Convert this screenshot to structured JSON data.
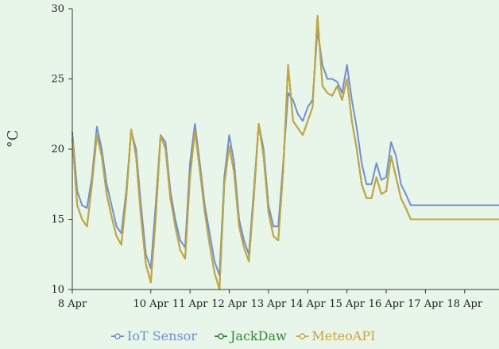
{
  "chart_data": {
    "type": "line",
    "ylabel": "°C",
    "ylim": [
      10,
      30
    ],
    "xlim": [
      "2024-04-08T00:00",
      "2024-04-18T21:00"
    ],
    "yticks": [
      10,
      15,
      20,
      25,
      30
    ],
    "xticks": [
      {
        "x": "2024-04-08T00:00",
        "label": "8 Apr"
      },
      {
        "x": "2024-04-10T00:00",
        "label": "10 Apr"
      },
      {
        "x": "2024-04-11T00:00",
        "label": "11 Apr"
      },
      {
        "x": "2024-04-12T00:00",
        "label": "12 Apr"
      },
      {
        "x": "2024-04-13T00:00",
        "label": "13 Apr"
      },
      {
        "x": "2024-04-14T00:00",
        "label": "14 Apr"
      },
      {
        "x": "2024-04-15T00:00",
        "label": "15 Apr"
      },
      {
        "x": "2024-04-16T00:00",
        "label": "16 Apr"
      },
      {
        "x": "2024-04-17T00:00",
        "label": "17 Apr"
      },
      {
        "x": "2024-04-18T00:00",
        "label": "18 Apr"
      }
    ],
    "grid": false,
    "legend_position": "bottom-center",
    "series": [
      {
        "name": "IoT Sensor",
        "color": "#6d8fd6",
        "x": [
          "2024-04-08T00:00",
          "2024-04-08T03:00",
          "2024-04-08T06:00",
          "2024-04-08T09:00",
          "2024-04-08T12:00",
          "2024-04-08T15:00",
          "2024-04-08T18:00",
          "2024-04-08T21:00",
          "2024-04-09T00:00",
          "2024-04-09T03:00",
          "2024-04-09T06:00",
          "2024-04-09T09:00",
          "2024-04-09T12:00",
          "2024-04-09T15:00",
          "2024-04-09T18:00",
          "2024-04-09T21:00",
          "2024-04-10T00:00",
          "2024-04-10T03:00",
          "2024-04-10T06:00",
          "2024-04-10T09:00",
          "2024-04-10T12:00",
          "2024-04-10T15:00",
          "2024-04-10T18:00",
          "2024-04-10T21:00",
          "2024-04-11T00:00",
          "2024-04-11T03:00",
          "2024-04-11T06:00",
          "2024-04-11T09:00",
          "2024-04-11T12:00",
          "2024-04-11T15:00",
          "2024-04-11T18:00",
          "2024-04-11T21:00",
          "2024-04-12T00:00",
          "2024-04-12T03:00",
          "2024-04-12T06:00",
          "2024-04-12T09:00",
          "2024-04-12T12:00",
          "2024-04-12T15:00",
          "2024-04-12T18:00",
          "2024-04-12T21:00",
          "2024-04-13T00:00",
          "2024-04-13T03:00",
          "2024-04-13T06:00",
          "2024-04-13T09:00",
          "2024-04-13T12:00",
          "2024-04-13T15:00",
          "2024-04-13T18:00",
          "2024-04-13T21:00",
          "2024-04-14T00:00",
          "2024-04-14T03:00",
          "2024-04-14T06:00",
          "2024-04-14T09:00",
          "2024-04-14T12:00",
          "2024-04-14T15:00",
          "2024-04-14T18:00",
          "2024-04-14T21:00",
          "2024-04-15T00:00",
          "2024-04-15T03:00",
          "2024-04-15T06:00",
          "2024-04-15T09:00",
          "2024-04-15T12:00",
          "2024-04-15T15:00",
          "2024-04-15T18:00",
          "2024-04-15T21:00",
          "2024-04-16T00:00",
          "2024-04-16T03:00",
          "2024-04-16T06:00",
          "2024-04-16T09:00",
          "2024-04-16T12:00",
          "2024-04-16T15:00",
          "2024-04-16T18:00",
          "2024-04-16T21:00",
          "2024-04-17T00:00",
          "2024-04-17T03:00",
          "2024-04-17T06:00",
          "2024-04-17T09:00",
          "2024-04-17T12:00",
          "2024-04-17T15:00",
          "2024-04-17T18:00",
          "2024-04-17T21:00",
          "2024-04-18T00:00",
          "2024-04-18T03:00",
          "2024-04-18T06:00",
          "2024-04-18T09:00",
          "2024-04-18T12:00",
          "2024-04-18T15:00",
          "2024-04-18T18:00",
          "2024-04-18T21:00"
        ],
        "values": [
          21.2,
          17.0,
          16.0,
          15.8,
          18.0,
          21.6,
          20.0,
          17.5,
          16.0,
          14.5,
          14.0,
          17.0,
          21.3,
          20.0,
          16.0,
          12.5,
          11.5,
          16.0,
          21.0,
          20.5,
          17.0,
          15.0,
          13.5,
          13.0,
          19.0,
          21.8,
          19.0,
          16.0,
          14.0,
          12.0,
          11.0,
          18.0,
          21.0,
          19.0,
          15.0,
          13.5,
          12.5,
          17.0,
          21.8,
          20.0,
          16.0,
          14.5,
          14.5,
          19.0,
          24.0,
          23.5,
          22.5,
          22.0,
          23.0,
          23.5,
          28.5,
          26.0,
          25.0,
          25.0,
          24.8,
          24.0,
          26.0,
          23.5,
          21.5,
          19.0,
          17.5,
          17.5,
          19.0,
          17.8,
          18.0,
          20.5,
          19.5,
          17.5,
          16.8,
          16.0,
          16.0,
          16.0,
          16.0,
          16.0,
          16.0,
          16.0,
          16.0,
          16.0,
          16.0,
          16.0,
          16.0,
          16.0,
          16.0,
          16.0,
          16.0,
          16.0,
          16.0,
          16.0
        ]
      },
      {
        "name": "JackDaw",
        "color": "#2f8a35",
        "x": [
          "2024-04-08T00:00",
          "2024-04-08T03:00",
          "2024-04-08T06:00",
          "2024-04-08T09:00",
          "2024-04-08T12:00",
          "2024-04-08T15:00",
          "2024-04-08T18:00",
          "2024-04-08T21:00",
          "2024-04-09T00:00",
          "2024-04-09T03:00",
          "2024-04-09T06:00",
          "2024-04-09T09:00",
          "2024-04-09T12:00",
          "2024-04-09T15:00",
          "2024-04-09T18:00",
          "2024-04-09T21:00",
          "2024-04-10T00:00",
          "2024-04-10T03:00",
          "2024-04-10T06:00",
          "2024-04-10T09:00",
          "2024-04-10T12:00",
          "2024-04-10T15:00",
          "2024-04-10T18:00",
          "2024-04-10T21:00",
          "2024-04-11T00:00",
          "2024-04-11T03:00",
          "2024-04-11T06:00",
          "2024-04-11T09:00",
          "2024-04-11T12:00",
          "2024-04-11T15:00",
          "2024-04-11T18:00",
          "2024-04-11T21:00",
          "2024-04-12T00:00",
          "2024-04-12T03:00",
          "2024-04-12T06:00",
          "2024-04-12T09:00",
          "2024-04-12T12:00",
          "2024-04-12T15:00",
          "2024-04-12T18:00",
          "2024-04-12T21:00",
          "2024-04-13T00:00",
          "2024-04-13T03:00",
          "2024-04-13T06:00",
          "2024-04-13T09:00",
          "2024-04-13T12:00",
          "2024-04-13T15:00",
          "2024-04-13T18:00",
          "2024-04-13T21:00",
          "2024-04-14T00:00",
          "2024-04-14T03:00",
          "2024-04-14T06:00",
          "2024-04-14T09:00",
          "2024-04-14T12:00",
          "2024-04-14T15:00",
          "2024-04-14T18:00",
          "2024-04-14T21:00",
          "2024-04-15T00:00",
          "2024-04-15T03:00",
          "2024-04-15T06:00",
          "2024-04-15T09:00",
          "2024-04-15T12:00",
          "2024-04-15T15:00",
          "2024-04-15T18:00",
          "2024-04-15T21:00",
          "2024-04-16T00:00",
          "2024-04-16T03:00",
          "2024-04-16T06:00",
          "2024-04-16T09:00",
          "2024-04-16T12:00",
          "2024-04-16T15:00",
          "2024-04-16T18:00",
          "2024-04-16T21:00",
          "2024-04-17T00:00",
          "2024-04-17T03:00",
          "2024-04-17T06:00",
          "2024-04-17T09:00",
          "2024-04-17T12:00",
          "2024-04-17T15:00",
          "2024-04-17T18:00",
          "2024-04-17T21:00",
          "2024-04-18T00:00",
          "2024-04-18T03:00",
          "2024-04-18T06:00",
          "2024-04-18T09:00",
          "2024-04-18T12:00",
          "2024-04-18T15:00",
          "2024-04-18T18:00",
          "2024-04-18T21:00"
        ],
        "values": [
          20.8,
          16.0,
          15.0,
          14.5,
          17.5,
          21.0,
          19.5,
          16.8,
          15.2,
          13.8,
          13.2,
          16.5,
          21.4,
          19.5,
          15.2,
          11.8,
          10.5,
          15.0,
          21.0,
          20.0,
          16.5,
          14.5,
          12.8,
          12.2,
          18.0,
          21.3,
          18.5,
          15.5,
          13.2,
          11.2,
          10.0,
          17.5,
          20.2,
          18.3,
          14.5,
          13.0,
          12.0,
          16.5,
          21.8,
          19.5,
          15.5,
          13.8,
          13.5,
          18.5,
          26.0,
          22.0,
          21.5,
          21.0,
          22.0,
          23.0,
          29.5,
          24.5,
          24.0,
          23.8,
          24.5,
          23.5,
          25.0,
          22.0,
          20.0,
          17.5,
          16.5,
          16.5,
          18.0,
          16.8,
          17.0,
          19.5,
          18.0,
          16.5,
          15.8,
          15.0,
          15.0,
          15.0,
          15.0,
          15.0,
          15.0,
          15.0,
          15.0,
          15.0,
          15.0,
          15.0,
          15.0,
          15.0,
          15.0,
          15.0,
          15.0,
          15.0,
          15.0,
          15.0
        ]
      },
      {
        "name": "MeteoAPI",
        "color": "#c9a53d",
        "x": [
          "2024-04-08T00:00",
          "2024-04-08T03:00",
          "2024-04-08T06:00",
          "2024-04-08T09:00",
          "2024-04-08T12:00",
          "2024-04-08T15:00",
          "2024-04-08T18:00",
          "2024-04-08T21:00",
          "2024-04-09T00:00",
          "2024-04-09T03:00",
          "2024-04-09T06:00",
          "2024-04-09T09:00",
          "2024-04-09T12:00",
          "2024-04-09T15:00",
          "2024-04-09T18:00",
          "2024-04-09T21:00",
          "2024-04-10T00:00",
          "2024-04-10T03:00",
          "2024-04-10T06:00",
          "2024-04-10T09:00",
          "2024-04-10T12:00",
          "2024-04-10T15:00",
          "2024-04-10T18:00",
          "2024-04-10T21:00",
          "2024-04-11T00:00",
          "2024-04-11T03:00",
          "2024-04-11T06:00",
          "2024-04-11T09:00",
          "2024-04-11T12:00",
          "2024-04-11T15:00",
          "2024-04-11T18:00",
          "2024-04-11T21:00",
          "2024-04-12T00:00",
          "2024-04-12T03:00",
          "2024-04-12T06:00",
          "2024-04-12T09:00",
          "2024-04-12T12:00",
          "2024-04-12T15:00",
          "2024-04-12T18:00",
          "2024-04-12T21:00",
          "2024-04-13T00:00",
          "2024-04-13T03:00",
          "2024-04-13T06:00",
          "2024-04-13T09:00",
          "2024-04-13T12:00",
          "2024-04-13T15:00",
          "2024-04-13T18:00",
          "2024-04-13T21:00",
          "2024-04-14T00:00",
          "2024-04-14T03:00",
          "2024-04-14T06:00",
          "2024-04-14T09:00",
          "2024-04-14T12:00",
          "2024-04-14T15:00",
          "2024-04-14T18:00",
          "2024-04-14T21:00",
          "2024-04-15T00:00",
          "2024-04-15T03:00",
          "2024-04-15T06:00",
          "2024-04-15T09:00",
          "2024-04-15T12:00",
          "2024-04-15T15:00",
          "2024-04-15T18:00",
          "2024-04-15T21:00",
          "2024-04-16T00:00",
          "2024-04-16T03:00",
          "2024-04-16T06:00",
          "2024-04-16T09:00",
          "2024-04-16T12:00",
          "2024-04-16T15:00",
          "2024-04-16T18:00",
          "2024-04-16T21:00",
          "2024-04-17T00:00",
          "2024-04-17T03:00",
          "2024-04-17T06:00",
          "2024-04-17T09:00",
          "2024-04-17T12:00",
          "2024-04-17T15:00",
          "2024-04-17T18:00",
          "2024-04-17T21:00",
          "2024-04-18T00:00",
          "2024-04-18T03:00",
          "2024-04-18T06:00",
          "2024-04-18T09:00",
          "2024-04-18T12:00",
          "2024-04-18T15:00",
          "2024-04-18T18:00",
          "2024-04-18T21:00"
        ],
        "values": [
          20.8,
          16.0,
          15.0,
          14.5,
          17.5,
          21.0,
          19.5,
          16.8,
          15.2,
          13.8,
          13.2,
          16.5,
          21.4,
          19.5,
          15.2,
          11.8,
          10.5,
          15.0,
          21.0,
          20.0,
          16.5,
          14.5,
          12.8,
          12.2,
          18.0,
          21.3,
          18.5,
          15.5,
          13.2,
          11.2,
          10.0,
          17.5,
          20.2,
          18.3,
          14.5,
          13.0,
          12.0,
          16.5,
          21.8,
          19.5,
          15.5,
          13.8,
          13.5,
          18.5,
          26.0,
          22.0,
          21.5,
          21.0,
          22.0,
          23.0,
          29.5,
          24.5,
          24.0,
          23.8,
          24.5,
          23.5,
          25.0,
          22.0,
          20.0,
          17.5,
          16.5,
          16.5,
          18.0,
          16.8,
          17.0,
          19.5,
          18.0,
          16.5,
          15.8,
          15.0,
          15.0,
          15.0,
          15.0,
          15.0,
          15.0,
          15.0,
          15.0,
          15.0,
          15.0,
          15.0,
          15.0,
          15.0,
          15.0,
          15.0,
          15.0,
          15.0,
          15.0,
          15.0
        ]
      }
    ]
  }
}
